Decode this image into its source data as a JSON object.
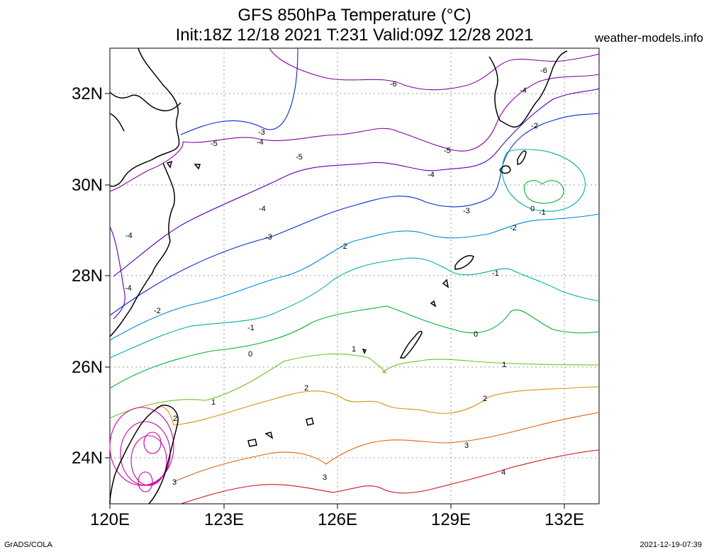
{
  "header": {
    "title_line1": "GFS 850hPa Temperature (°C)",
    "title_line2": "Init:18Z 12/18 2021 T:231 Valid:09Z 12/28 2021",
    "site": "weather-models.info"
  },
  "footer": {
    "left": "GrADS/COLA",
    "right": "2021-12-19-07:39"
  },
  "axes": {
    "lat_labels": [
      "32N",
      "30N",
      "28N",
      "26N",
      "24N"
    ],
    "lon_labels": [
      "120E",
      "123E",
      "126E",
      "129E",
      "132E"
    ]
  },
  "contour_labels": [
    {
      "text": "-6"
    },
    {
      "text": "-6"
    },
    {
      "text": "-5"
    },
    {
      "text": "-5"
    },
    {
      "text": "-5"
    },
    {
      "text": "-4"
    },
    {
      "text": "-4"
    },
    {
      "text": "-4"
    },
    {
      "text": "-4"
    },
    {
      "text": "-4"
    },
    {
      "text": "-4"
    },
    {
      "text": "-3"
    },
    {
      "text": "-3"
    },
    {
      "text": "-3"
    },
    {
      "text": "-2"
    },
    {
      "text": "-2"
    },
    {
      "text": "-2"
    },
    {
      "text": "-2"
    },
    {
      "text": "-1"
    },
    {
      "text": "-1"
    },
    {
      "text": "-1"
    },
    {
      "text": "0"
    },
    {
      "text": "0"
    },
    {
      "text": "0"
    },
    {
      "text": "1"
    },
    {
      "text": "1"
    },
    {
      "text": "1"
    },
    {
      "text": "2"
    },
    {
      "text": "2"
    },
    {
      "text": "2"
    },
    {
      "text": "3"
    },
    {
      "text": "3"
    },
    {
      "text": "3"
    },
    {
      "text": "4"
    }
  ],
  "colors": {
    "c_m6": "#8a00a8",
    "c_m5": "#8a00a8",
    "c_m4": "#5a00b0",
    "c_m3": "#0a2ad0",
    "c_m2": "#0088d8",
    "c_m1": "#00b0a0",
    "c_0": "#00b030",
    "c_1": "#70c020",
    "c_2": "#d89010",
    "c_3": "#e06010",
    "c_4": "#d01020",
    "c_hot": "#d000a0"
  }
}
